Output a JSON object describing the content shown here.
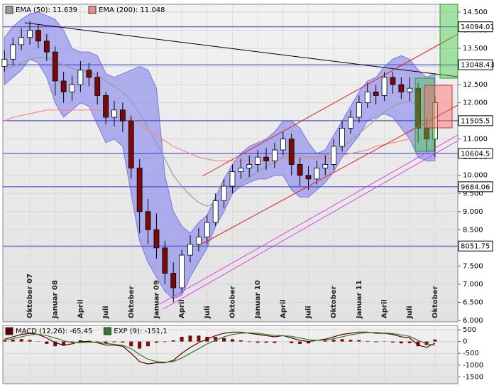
{
  "chart_data": [
    {
      "type": "candlestick",
      "x": [
        -3,
        -2,
        -1,
        0,
        1,
        2,
        3,
        4,
        5,
        6,
        7,
        8,
        9,
        10,
        11,
        12,
        13,
        14,
        15,
        16,
        17,
        18,
        19,
        20,
        21,
        22,
        23,
        24,
        25,
        26,
        27,
        28,
        29,
        30,
        31,
        32,
        33,
        34,
        35,
        36,
        37,
        38,
        39,
        40,
        41,
        42,
        43,
        44,
        45,
        46,
        47,
        48
      ],
      "xlim": [
        -3.2,
        50.7
      ],
      "xticks": [
        {
          "value": 0,
          "label": "Oktober 07"
        },
        {
          "value": 3,
          "label": "Januar 08"
        },
        {
          "value": 6,
          "label": "April"
        },
        {
          "value": 9,
          "label": "Juli"
        },
        {
          "value": 12,
          "label": "Oktober"
        },
        {
          "value": 15,
          "label": "Januar 09"
        },
        {
          "value": 18,
          "label": "April"
        },
        {
          "value": 21,
          "label": "Juli"
        },
        {
          "value": 24,
          "label": "Oktober"
        },
        {
          "value": 27,
          "label": "Januar 10"
        },
        {
          "value": 30,
          "label": "April"
        },
        {
          "value": 33,
          "label": "Juli"
        },
        {
          "value": 36,
          "label": "Oktober"
        },
        {
          "value": 39,
          "label": "Januar 11"
        },
        {
          "value": 42,
          "label": "April"
        },
        {
          "value": 45,
          "label": "Juli"
        },
        {
          "value": 48,
          "label": "Oktober"
        }
      ],
      "open": [
        13000,
        13200,
        13600,
        13800,
        14000,
        13700,
        13400,
        12600,
        12300,
        12500,
        12900,
        12700,
        12200,
        11600,
        11800,
        11500,
        10200,
        9000,
        8500,
        8000,
        7300,
        6900,
        7800,
        8100,
        8300,
        8700,
        9300,
        9700,
        10100,
        10200,
        10300,
        10500,
        10400,
        10700,
        11000,
        10300,
        10000,
        9900,
        10200,
        10300,
        10800,
        11300,
        11600,
        12000,
        12300,
        12200,
        12700,
        12500,
        12300,
        12400,
        11300,
        11000
      ],
      "high": [
        13450,
        13800,
        14050,
        14250,
        14150,
        13900,
        13550,
        12850,
        12750,
        13150,
        13100,
        12850,
        12300,
        12050,
        12000,
        11650,
        10450,
        9350,
        8950,
        8200,
        7600,
        7950,
        8350,
        8550,
        8900,
        9500,
        9900,
        10300,
        10450,
        10550,
        10700,
        10750,
        10900,
        11200,
        11150,
        10500,
        10250,
        10400,
        10550,
        11000,
        11500,
        11800,
        12200,
        12550,
        12500,
        12850,
        12850,
        12700,
        12700,
        12550,
        11600,
        12200
      ],
      "low": [
        12850,
        13050,
        13450,
        13600,
        13500,
        13150,
        12200,
        12000,
        12050,
        12300,
        12450,
        11950,
        11400,
        11350,
        11200,
        9900,
        8400,
        8100,
        7700,
        7000,
        6500,
        6750,
        7600,
        7900,
        8100,
        8600,
        9100,
        9500,
        9900,
        9950,
        10100,
        10150,
        10200,
        10550,
        10000,
        9700,
        9600,
        9750,
        10000,
        10150,
        10650,
        11150,
        11450,
        11850,
        11950,
        12050,
        12250,
        12100,
        12050,
        10900,
        10650,
        10500
      ],
      "close": [
        13200,
        13600,
        13800,
        14000,
        13700,
        13400,
        12600,
        12300,
        12500,
        12900,
        12700,
        12200,
        11600,
        11800,
        11500,
        10200,
        9000,
        8500,
        8000,
        7300,
        6900,
        7800,
        8100,
        8300,
        8700,
        9300,
        9700,
        10100,
        10200,
        10300,
        10500,
        10400,
        10700,
        11000,
        10300,
        10000,
        9900,
        10200,
        10300,
        10800,
        11300,
        11600,
        12000,
        12300,
        12200,
        12700,
        12500,
        12300,
        12400,
        11300,
        11000,
        12000
      ],
      "up_color": "#ffffff",
      "down_color": "#7a0a0a",
      "series": [
        {
          "name": "EMA (50): 11.639",
          "color": "#9a9a9a",
          "values": [
            12900,
            13000,
            13100,
            13200,
            13250,
            13250,
            13150,
            13050,
            12950,
            12900,
            12850,
            12750,
            12600,
            12450,
            12300,
            12050,
            11700,
            11300,
            10900,
            10450,
            10000,
            9700,
            9450,
            9250,
            9150,
            9250,
            9400,
            9600,
            9800,
            9950,
            10100,
            10250,
            10350,
            10500,
            10550,
            10550,
            10500,
            10500,
            10550,
            10650,
            10800,
            10950,
            11150,
            11350,
            11550,
            11750,
            11900,
            12000,
            12050,
            11900,
            11700,
            11639
          ]
        },
        {
          "name": "EMA (200): 11.048",
          "color": "#f08a8a",
          "values": [
            11500,
            11600,
            11650,
            11700,
            11750,
            11800,
            11800,
            11800,
            11800,
            11800,
            11800,
            11800,
            11750,
            11700,
            11650,
            11550,
            11400,
            11250,
            11100,
            10950,
            10800,
            10700,
            10600,
            10500,
            10450,
            10400,
            10400,
            10400,
            10400,
            10400,
            10400,
            10400,
            10400,
            10450,
            10450,
            10450,
            10450,
            10450,
            10450,
            10500,
            10550,
            10600,
            10650,
            10700,
            10800,
            10850,
            10900,
            10950,
            11000,
            11000,
            11020,
            11048
          ]
        }
      ],
      "band": {
        "color": "#8c8cee",
        "upper": [
          13800,
          14100,
          14300,
          14450,
          14500,
          14400,
          14300,
          14000,
          13500,
          13400,
          13400,
          13300,
          12800,
          12700,
          12800,
          12900,
          13000,
          12900,
          12400,
          10000,
          9000,
          8600,
          8400,
          8700,
          8900,
          9400,
          9900,
          10300,
          10600,
          10800,
          10900,
          11000,
          11200,
          11500,
          11500,
          11300,
          10900,
          10600,
          10700,
          11100,
          11500,
          11900,
          12300,
          12600,
          12700,
          13000,
          13200,
          13300,
          13200,
          12900,
          12700,
          12800
        ],
        "lower": [
          12500,
          12700,
          12900,
          13200,
          13100,
          12700,
          12000,
          11600,
          11800,
          12000,
          11900,
          11400,
          10900,
          11000,
          10800,
          9500,
          8200,
          7600,
          7200,
          6800,
          6600,
          6700,
          7200,
          7600,
          8000,
          8600,
          9000,
          9500,
          9700,
          9800,
          9900,
          9900,
          10000,
          10000,
          9600,
          9400,
          9400,
          9600,
          9800,
          10100,
          10500,
          10800,
          11100,
          11500,
          11600,
          11700,
          11600,
          11300,
          11000,
          10500,
          10400,
          10400
        ]
      },
      "levels": [
        14094.01,
        13048.43,
        11505.5,
        10604.5,
        9684.06,
        8051.75
      ],
      "level_color": "#3a3ad0",
      "ylim": [
        5960,
        14715
      ],
      "yticks": [
        {
          "value": 6000,
          "label": "6.000"
        },
        {
          "value": 6500,
          "label": "6.500"
        },
        {
          "value": 7000,
          "label": "7.000"
        },
        {
          "value": 7500,
          "label": "7.500"
        },
        {
          "value": 8000,
          "label": "8.000"
        },
        {
          "value": 8500,
          "label": "8.500"
        },
        {
          "value": 9000,
          "label": "9.000"
        },
        {
          "value": 9500,
          "label": "9.500"
        },
        {
          "value": 10000,
          "label": "10.000"
        },
        {
          "value": 10500,
          "label": "10.500"
        },
        {
          "value": 11000,
          "label": "11.000"
        },
        {
          "value": 11500,
          "label": "11.500"
        },
        {
          "value": 12000,
          "label": "12.000"
        },
        {
          "value": 12500,
          "label": "12.500"
        },
        {
          "value": 13000,
          "label": "13.000"
        },
        {
          "value": 13500,
          "label": "13.500"
        },
        {
          "value": 14000,
          "label": "14.000"
        },
        {
          "value": 14500,
          "label": "14.500"
        }
      ],
      "grid": true
    },
    {
      "type": "line",
      "series": [
        {
          "name": "MACD (12,26): -65,45",
          "color": "#5a0000",
          "values": [
            100,
            200,
            300,
            350,
            300,
            150,
            -50,
            -150,
            -100,
            0,
            0,
            -50,
            -150,
            -150,
            -200,
            -500,
            -850,
            -950,
            -900,
            -900,
            -800,
            -500,
            -250,
            -50,
            100,
            250,
            350,
            400,
            400,
            350,
            300,
            250,
            200,
            250,
            150,
            50,
            0,
            50,
            100,
            200,
            300,
            350,
            400,
            400,
            350,
            350,
            300,
            200,
            150,
            -150,
            -250,
            -65.45
          ]
        },
        {
          "name": "EXP (9): -151,1",
          "color": "#2e7d2e",
          "values": [
            50,
            120,
            200,
            280,
            310,
            250,
            150,
            30,
            -50,
            -50,
            -30,
            -30,
            -80,
            -120,
            -160,
            -300,
            -550,
            -750,
            -850,
            -880,
            -850,
            -700,
            -500,
            -300,
            -100,
            50,
            200,
            300,
            350,
            370,
            350,
            300,
            260,
            250,
            220,
            150,
            80,
            50,
            60,
            120,
            200,
            280,
            340,
            380,
            380,
            360,
            340,
            280,
            220,
            50,
            -100,
            -151.1
          ]
        }
      ],
      "histogram_color": "#7a0a0a",
      "ylim": [
        -1790,
        681
      ],
      "yticks": [
        500,
        0,
        -500,
        -1000,
        -1500
      ],
      "grid": true
    }
  ]
}
